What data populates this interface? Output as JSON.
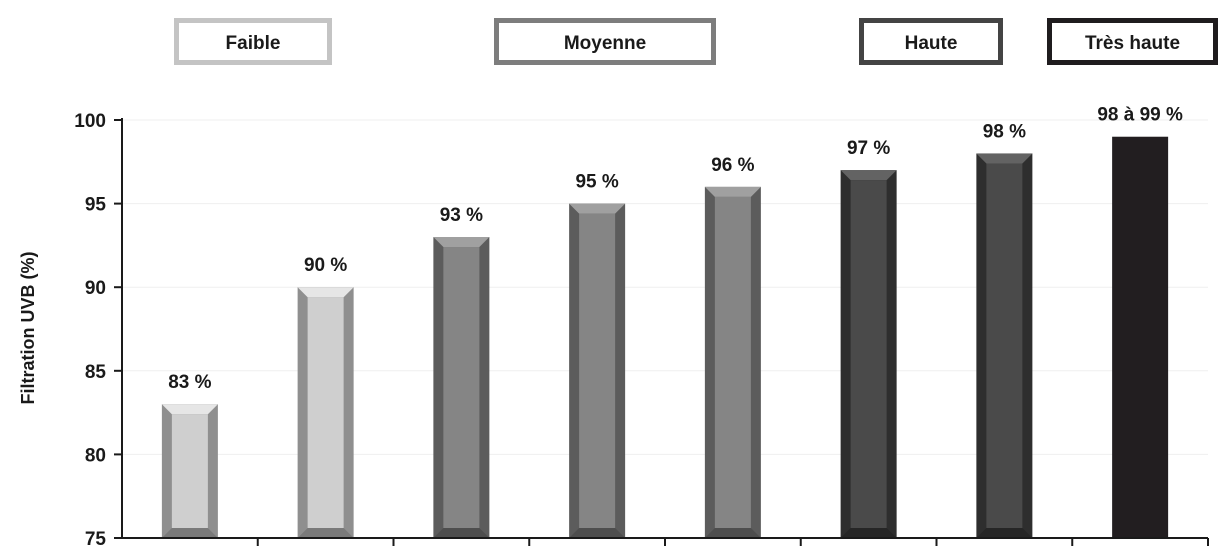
{
  "chart_data": {
    "type": "bar",
    "ylabel": "Filtration UVB (%)",
    "ylim": [
      75,
      100
    ],
    "yticks": [
      "75",
      "80",
      "85",
      "90",
      "95",
      "100"
    ],
    "grid": true,
    "legend_position": "top",
    "legend": [
      {
        "name": "Faible",
        "color": "#c4c4c4"
      },
      {
        "name": "Moyenne",
        "color": "#7d7d7d"
      },
      {
        "name": "Haute",
        "color": "#444444"
      },
      {
        "name": "Très haute",
        "color": "#1f1c1e"
      }
    ],
    "values": [
      83,
      90,
      93,
      95,
      96,
      97,
      98,
      99
    ],
    "labels": [
      "83 %",
      "90 %",
      "93 %",
      "95 %",
      "96 %",
      "97 %",
      "98 %",
      "98 à 99 %"
    ],
    "bar_level": [
      "Faible",
      "Faible",
      "Moyenne",
      "Moyenne",
      "Moyenne",
      "Haute",
      "Haute",
      "Très haute"
    ]
  }
}
